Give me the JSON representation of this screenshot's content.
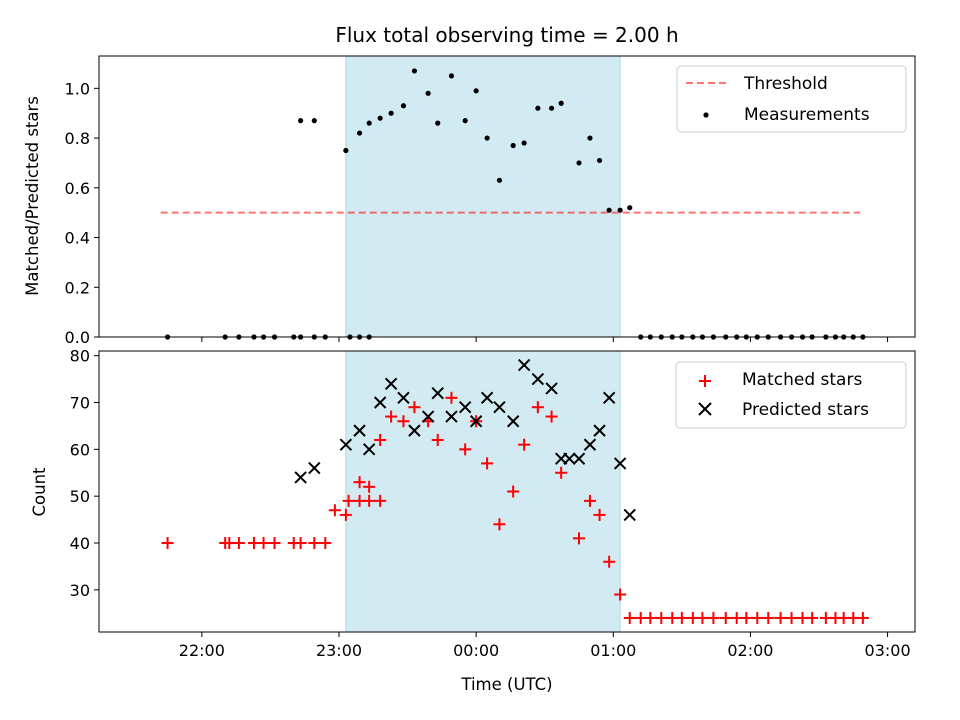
{
  "title": "Flux total observing time = 2.00 h",
  "colors": {
    "shade": "#add8e6",
    "threshold": "#ff0000",
    "measurement": "#000000",
    "matched": "#ff0000",
    "predicted": "#000000"
  },
  "chart_data": [
    {
      "type": "scatter",
      "name": "top",
      "ylabel": "Matched/Predicted stars",
      "xlim": [
        21.25,
        27.2
      ],
      "ylim": [
        0,
        1.13
      ],
      "xtick_values": [
        22,
        23,
        24,
        25,
        26,
        27
      ],
      "ytick_values": [
        0.0,
        0.2,
        0.4,
        0.6,
        0.8,
        1.0
      ],
      "ytick_labels": [
        "0.0",
        "0.2",
        "0.4",
        "0.6",
        "0.8",
        "1.0"
      ],
      "shade": [
        23.05,
        25.05
      ],
      "threshold": {
        "name": "Threshold",
        "value": 0.5,
        "x_range": [
          21.7,
          26.8
        ]
      },
      "legend": {
        "position": "upper right",
        "entries": [
          "Threshold",
          "Measurements"
        ]
      },
      "series": [
        {
          "name": "Measurements",
          "points": [
            [
              21.75,
              0
            ],
            [
              22.17,
              0
            ],
            [
              22.27,
              0
            ],
            [
              22.38,
              0
            ],
            [
              22.45,
              0
            ],
            [
              22.53,
              0
            ],
            [
              22.67,
              0
            ],
            [
              22.72,
              0
            ],
            [
              22.82,
              0
            ],
            [
              22.9,
              0
            ],
            [
              23.08,
              0
            ],
            [
              23.15,
              0
            ],
            [
              23.22,
              0
            ],
            [
              22.72,
              0.87
            ],
            [
              22.82,
              0.87
            ],
            [
              23.05,
              0.75
            ],
            [
              23.15,
              0.82
            ],
            [
              23.22,
              0.86
            ],
            [
              23.3,
              0.88
            ],
            [
              23.38,
              0.9
            ],
            [
              23.47,
              0.93
            ],
            [
              23.55,
              1.07
            ],
            [
              23.65,
              0.98
            ],
            [
              23.72,
              0.86
            ],
            [
              23.82,
              1.05
            ],
            [
              23.92,
              0.87
            ],
            [
              24.0,
              0.99
            ],
            [
              24.08,
              0.8
            ],
            [
              24.17,
              0.63
            ],
            [
              24.27,
              0.77
            ],
            [
              24.35,
              0.78
            ],
            [
              24.45,
              0.92
            ],
            [
              24.55,
              0.92
            ],
            [
              24.62,
              0.94
            ],
            [
              24.75,
              0.7
            ],
            [
              24.83,
              0.8
            ],
            [
              24.9,
              0.71
            ],
            [
              24.97,
              0.51
            ],
            [
              25.05,
              0.51
            ],
            [
              25.12,
              0.52
            ],
            [
              25.2,
              0
            ],
            [
              25.27,
              0
            ],
            [
              25.35,
              0
            ],
            [
              25.43,
              0
            ],
            [
              25.5,
              0
            ],
            [
              25.58,
              0
            ],
            [
              25.65,
              0
            ],
            [
              25.73,
              0
            ],
            [
              25.82,
              0
            ],
            [
              25.9,
              0
            ],
            [
              25.97,
              0
            ],
            [
              26.05,
              0
            ],
            [
              26.13,
              0
            ],
            [
              26.22,
              0
            ],
            [
              26.3,
              0
            ],
            [
              26.38,
              0
            ],
            [
              26.45,
              0
            ],
            [
              26.55,
              0
            ],
            [
              26.62,
              0
            ],
            [
              26.68,
              0
            ],
            [
              26.75,
              0
            ],
            [
              26.82,
              0
            ]
          ]
        }
      ]
    },
    {
      "type": "scatter",
      "name": "bottom",
      "xlabel": "Time (UTC)",
      "ylabel": "Count",
      "xlim": [
        21.25,
        27.2
      ],
      "ylim": [
        21,
        81
      ],
      "xtick_values": [
        22,
        23,
        24,
        25,
        26,
        27
      ],
      "xtick_labels": [
        "22:00",
        "23:00",
        "00:00",
        "01:00",
        "02:00",
        "03:00"
      ],
      "ytick_values": [
        30,
        40,
        50,
        60,
        70,
        80
      ],
      "ytick_labels": [
        "30",
        "40",
        "50",
        "60",
        "70",
        "80"
      ],
      "shade": [
        23.05,
        25.05
      ],
      "legend": {
        "position": "upper right",
        "entries": [
          "Matched stars",
          "Predicted stars"
        ]
      },
      "series": [
        {
          "name": "Matched stars",
          "marker": "plus",
          "points": [
            [
              21.75,
              40
            ],
            [
              22.17,
              40
            ],
            [
              22.2,
              40
            ],
            [
              22.27,
              40
            ],
            [
              22.38,
              40
            ],
            [
              22.45,
              40
            ],
            [
              22.53,
              40
            ],
            [
              22.67,
              40
            ],
            [
              22.72,
              40
            ],
            [
              22.82,
              40
            ],
            [
              22.9,
              40
            ],
            [
              22.97,
              47
            ],
            [
              23.07,
              49
            ],
            [
              23.15,
              49
            ],
            [
              23.22,
              49
            ],
            [
              23.3,
              49
            ],
            [
              23.05,
              46
            ],
            [
              23.15,
              53
            ],
            [
              23.22,
              52
            ],
            [
              23.3,
              62
            ],
            [
              23.38,
              67
            ],
            [
              23.47,
              66
            ],
            [
              23.55,
              69
            ],
            [
              23.65,
              66
            ],
            [
              23.72,
              62
            ],
            [
              23.82,
              71
            ],
            [
              23.92,
              60
            ],
            [
              24.0,
              66
            ],
            [
              24.08,
              57
            ],
            [
              24.17,
              44
            ],
            [
              24.27,
              51
            ],
            [
              24.35,
              61
            ],
            [
              24.45,
              69
            ],
            [
              24.55,
              67
            ],
            [
              24.62,
              55
            ],
            [
              24.75,
              41
            ],
            [
              24.83,
              49
            ],
            [
              24.9,
              46
            ],
            [
              24.97,
              36
            ],
            [
              25.05,
              29
            ],
            [
              25.12,
              24
            ],
            [
              25.2,
              24
            ],
            [
              25.27,
              24
            ],
            [
              25.35,
              24
            ],
            [
              25.43,
              24
            ],
            [
              25.5,
              24
            ],
            [
              25.58,
              24
            ],
            [
              25.65,
              24
            ],
            [
              25.73,
              24
            ],
            [
              25.82,
              24
            ],
            [
              25.9,
              24
            ],
            [
              25.97,
              24
            ],
            [
              26.05,
              24
            ],
            [
              26.13,
              24
            ],
            [
              26.22,
              24
            ],
            [
              26.3,
              24
            ],
            [
              26.38,
              24
            ],
            [
              26.45,
              24
            ],
            [
              26.55,
              24
            ],
            [
              26.62,
              24
            ],
            [
              26.68,
              24
            ],
            [
              26.75,
              24
            ],
            [
              26.82,
              24
            ]
          ]
        },
        {
          "name": "Predicted stars",
          "marker": "x",
          "points": [
            [
              22.72,
              54
            ],
            [
              22.82,
              56
            ],
            [
              23.05,
              61
            ],
            [
              23.15,
              64
            ],
            [
              23.22,
              60
            ],
            [
              23.3,
              70
            ],
            [
              23.38,
              74
            ],
            [
              23.47,
              71
            ],
            [
              23.55,
              64
            ],
            [
              23.65,
              67
            ],
            [
              23.72,
              72
            ],
            [
              23.82,
              67
            ],
            [
              23.92,
              69
            ],
            [
              24.0,
              66
            ],
            [
              24.08,
              71
            ],
            [
              24.17,
              69
            ],
            [
              24.27,
              66
            ],
            [
              24.35,
              78
            ],
            [
              24.45,
              75
            ],
            [
              24.55,
              73
            ],
            [
              24.62,
              58
            ],
            [
              24.68,
              58
            ],
            [
              24.75,
              58
            ],
            [
              24.83,
              61
            ],
            [
              24.9,
              64
            ],
            [
              24.97,
              71
            ],
            [
              25.05,
              57
            ],
            [
              25.12,
              46
            ]
          ]
        }
      ]
    }
  ]
}
